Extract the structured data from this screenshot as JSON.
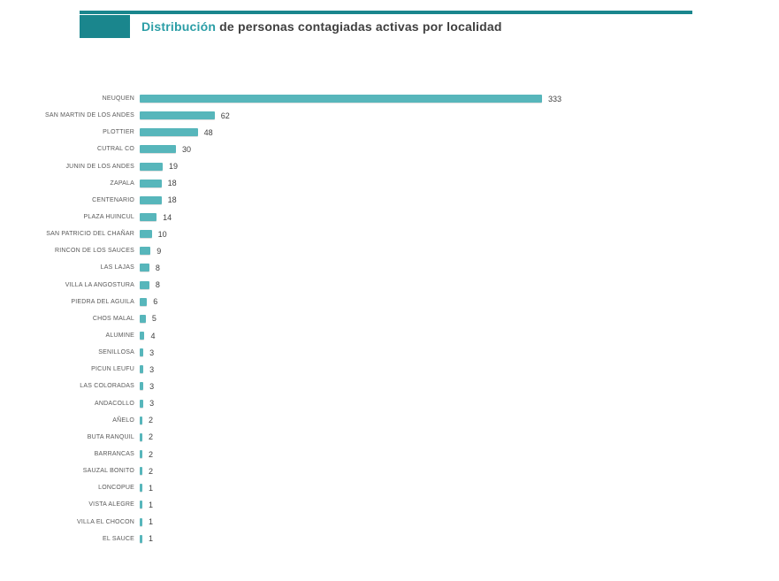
{
  "title": {
    "accent": "Distribución",
    "rest": " de personas contagiadas activas por localidad"
  },
  "colors": {
    "accent_dark": "#1a868d",
    "accent_text": "#2b9ea6",
    "title_text": "#3f3f3f",
    "bar": "#57b6bb",
    "label_text": "#595959",
    "value_text": "#404040"
  },
  "chart_data": {
    "type": "bar",
    "orientation": "horizontal",
    "title": "Distribución de personas contagiadas activas por localidad",
    "categories": [
      "NEUQUEN",
      "SAN MARTIN DE LOS ANDES",
      "PLOTTIER",
      "CUTRAL CO",
      "JUNIN DE LOS ANDES",
      "ZAPALA",
      "CENTENARIO",
      "PLAZA HUINCUL",
      "SAN PATRICIO DEL CHAÑAR",
      "RINCON DE LOS SAUCES",
      "LAS LAJAS",
      "VILLA LA ANGOSTURA",
      "PIEDRA DEL AGUILA",
      "CHOS MALAL",
      "ALUMINE",
      "SENILLOSA",
      "PICUN LEUFU",
      "LAS COLORADAS",
      "ANDACOLLO",
      "AÑELO",
      "BUTA RANQUIL",
      "BARRANCAS",
      "SAUZAL BONITO",
      "LONCOPUE",
      "VISTA ALEGRE",
      "VILLA EL CHOCON",
      "EL SAUCE"
    ],
    "values": [
      333,
      62,
      48,
      30,
      19,
      18,
      18,
      14,
      10,
      9,
      8,
      8,
      6,
      5,
      4,
      3,
      3,
      3,
      3,
      2,
      2,
      2,
      2,
      1,
      1,
      1,
      1
    ],
    "value_labels_shown": true,
    "xlabel": "",
    "ylabel": "",
    "xlim": [
      0,
      333
    ],
    "grid": false,
    "legend": false
  }
}
